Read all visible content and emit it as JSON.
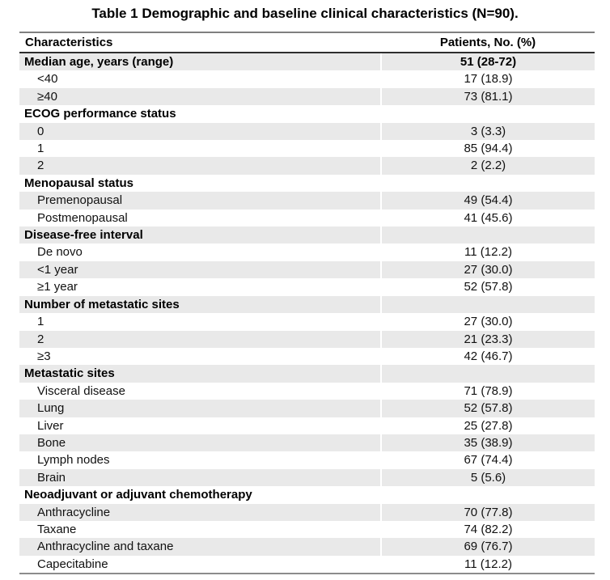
{
  "title": "Table 1 Demographic and baseline clinical characteristics (N=90).",
  "table": {
    "header": {
      "characteristics": "Characteristics",
      "patients": "Patients, No. (%)"
    },
    "rows": [
      {
        "label": "Median age, years (range)",
        "value": "51 (28-72)",
        "bold": true,
        "indent": false
      },
      {
        "label": "<40",
        "value": "17 (18.9)",
        "bold": false,
        "indent": true
      },
      {
        "label": "≥40",
        "value": "73 (81.1)",
        "bold": false,
        "indent": true
      },
      {
        "label": "ECOG performance status",
        "value": "",
        "bold": true,
        "indent": false
      },
      {
        "label": "0",
        "value": "3 (3.3)",
        "bold": false,
        "indent": true
      },
      {
        "label": "1",
        "value": "85 (94.4)",
        "bold": false,
        "indent": true
      },
      {
        "label": "2",
        "value": "2 (2.2)",
        "bold": false,
        "indent": true
      },
      {
        "label": "Menopausal status",
        "value": "",
        "bold": true,
        "indent": false
      },
      {
        "label": "Premenopausal",
        "value": "49 (54.4)",
        "bold": false,
        "indent": true
      },
      {
        "label": "Postmenopausal",
        "value": "41 (45.6)",
        "bold": false,
        "indent": true
      },
      {
        "label": "Disease-free interval",
        "value": "",
        "bold": true,
        "indent": false
      },
      {
        "label": "De novo",
        "value": "11 (12.2)",
        "bold": false,
        "indent": true
      },
      {
        "label": "<1 year",
        "value": "27 (30.0)",
        "bold": false,
        "indent": true
      },
      {
        "label": "≥1 year",
        "value": "52 (57.8)",
        "bold": false,
        "indent": true
      },
      {
        "label": "Number of metastatic sites",
        "value": "",
        "bold": true,
        "indent": false
      },
      {
        "label": "1",
        "value": "27 (30.0)",
        "bold": false,
        "indent": true
      },
      {
        "label": "2",
        "value": "21 (23.3)",
        "bold": false,
        "indent": true
      },
      {
        "label": "≥3",
        "value": "42 (46.7)",
        "bold": false,
        "indent": true
      },
      {
        "label": "Metastatic sites",
        "value": "",
        "bold": true,
        "indent": false
      },
      {
        "label": "Visceral disease",
        "value": "71 (78.9)",
        "bold": false,
        "indent": true
      },
      {
        "label": "Lung",
        "value": "52 (57.8)",
        "bold": false,
        "indent": true
      },
      {
        "label": "Liver",
        "value": "25 (27.8)",
        "bold": false,
        "indent": true
      },
      {
        "label": "Bone",
        "value": "35 (38.9)",
        "bold": false,
        "indent": true
      },
      {
        "label": "Lymph nodes",
        "value": "67 (74.4)",
        "bold": false,
        "indent": true
      },
      {
        "label": "Brain",
        "value": "5 (5.6)",
        "bold": false,
        "indent": true
      },
      {
        "label": "Neoadjuvant or adjuvant chemotherapy",
        "value": "",
        "bold": true,
        "indent": false
      },
      {
        "label": "Anthracycline",
        "value": "70 (77.8)",
        "bold": false,
        "indent": true
      },
      {
        "label": "Taxane",
        "value": "74 (82.2)",
        "bold": false,
        "indent": true
      },
      {
        "label": "Anthracycline and taxane",
        "value": "69 (76.7)",
        "bold": false,
        "indent": true
      },
      {
        "label": "Capecitabine",
        "value": "11 (12.2)",
        "bold": false,
        "indent": true
      }
    ]
  },
  "colors": {
    "row_shading": "#e9e9e9",
    "border_top_bottom": "#7f7f7f",
    "border_header_bottom": "#2e2e2e",
    "text": "#000000",
    "background": "#ffffff"
  }
}
